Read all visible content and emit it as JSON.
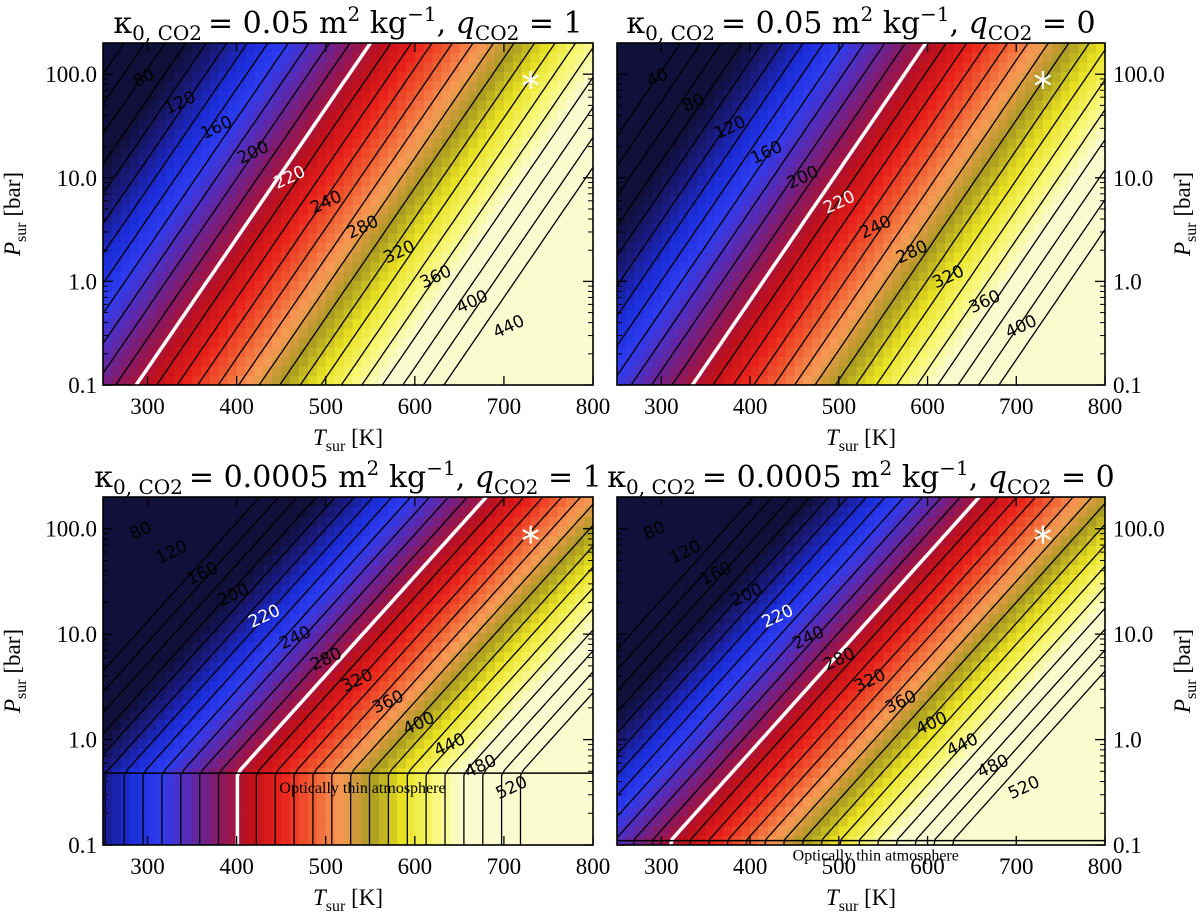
{
  "chart_data": [
    {
      "type": "heatmap",
      "title": {
        "kappa_symbol": "κ",
        "kappa_sub": "0, CO2",
        "kappa_value": "= 0.05 m",
        "unit_sup_m": "2",
        "unit_kg": " kg",
        "unit_sup_kg": "−1",
        "q_sep": ", ",
        "q_symbol": "q",
        "q_sub": "CO2",
        "q_value": " = 1"
      },
      "xlabel": {
        "symbol": "T",
        "sub": "sur",
        "unit": " [K]"
      },
      "ylabel": {
        "symbol": "P",
        "sub": "sur",
        "unit": " [bar]"
      },
      "xlim": [
        250,
        800
      ],
      "ylim": [
        0.1,
        200
      ],
      "yscale": "log",
      "x_ticks": [
        "300",
        "400",
        "500",
        "600",
        "700",
        "800"
      ],
      "y_ticks": [
        "0.1",
        "1.0",
        "10.0",
        "100.0"
      ],
      "y_axis_side": "left",
      "contour_labels": [
        "80",
        "120",
        "160",
        "200",
        "220",
        "240",
        "280",
        "320",
        "360",
        "400",
        "440"
      ],
      "highlight_contour": 220,
      "marker": {
        "T": 730,
        "P": 88
      },
      "thin_limit_bar": null,
      "annotation": ""
    },
    {
      "type": "heatmap",
      "title": {
        "kappa_symbol": "κ",
        "kappa_sub": "0, CO2",
        "kappa_value": "= 0.05 m",
        "unit_sup_m": "2",
        "unit_kg": " kg",
        "unit_sup_kg": "−1",
        "q_sep": ", ",
        "q_symbol": "q",
        "q_sub": "CO2",
        "q_value": " = 0"
      },
      "xlabel": {
        "symbol": "T",
        "sub": "sur",
        "unit": " [K]"
      },
      "ylabel": {
        "symbol": "P",
        "sub": "sur",
        "unit": " [bar]"
      },
      "xlim": [
        250,
        800
      ],
      "ylim": [
        0.1,
        200
      ],
      "yscale": "log",
      "x_ticks": [
        "300",
        "400",
        "500",
        "600",
        "700",
        "800"
      ],
      "y_ticks": [
        "0.1",
        "1.0",
        "10.0",
        "100.0"
      ],
      "y_axis_side": "right",
      "contour_labels": [
        "40",
        "80",
        "120",
        "160",
        "200",
        "220",
        "240",
        "280",
        "320",
        "360",
        "400"
      ],
      "highlight_contour": 220,
      "marker": {
        "T": 730,
        "P": 88
      },
      "thin_limit_bar": null,
      "annotation": ""
    },
    {
      "type": "heatmap",
      "title": {
        "kappa_symbol": "κ",
        "kappa_sub": "0, CO2",
        "kappa_value": "= 0.0005 m",
        "unit_sup_m": "2",
        "unit_kg": " kg",
        "unit_sup_kg": "−1",
        "q_sep": ", ",
        "q_symbol": "q",
        "q_sub": "CO2",
        "q_value": " = 1"
      },
      "xlabel": {
        "symbol": "T",
        "sub": "sur",
        "unit": " [K]"
      },
      "ylabel": {
        "symbol": "P",
        "sub": "sur",
        "unit": " [bar]"
      },
      "xlim": [
        250,
        800
      ],
      "ylim": [
        0.1,
        200
      ],
      "yscale": "log",
      "x_ticks": [
        "300",
        "400",
        "500",
        "600",
        "700",
        "800"
      ],
      "y_ticks": [
        "0.1",
        "1.0",
        "10.0",
        "100.0"
      ],
      "y_axis_side": "left",
      "contour_labels": [
        "80",
        "120",
        "160",
        "200",
        "220",
        "240",
        "280",
        "320",
        "360",
        "400",
        "440",
        "480",
        "520"
      ],
      "highlight_contour": 220,
      "marker": {
        "T": 730,
        "P": 88
      },
      "thin_limit_bar": 0.48,
      "annotation": "Optically thin atmosphere"
    },
    {
      "type": "heatmap",
      "title": {
        "kappa_symbol": "κ",
        "kappa_sub": "0, CO2",
        "kappa_value": "= 0.0005 m",
        "unit_sup_m": "2",
        "unit_kg": " kg",
        "unit_sup_kg": "−1",
        "q_sep": ", ",
        "q_symbol": "q",
        "q_sub": "CO2",
        "q_value": " = 0"
      },
      "xlabel": {
        "symbol": "T",
        "sub": "sur",
        "unit": " [K]"
      },
      "ylabel": {
        "symbol": "P",
        "sub": "sur",
        "unit": " [bar]"
      },
      "xlim": [
        250,
        800
      ],
      "ylim": [
        0.1,
        200
      ],
      "yscale": "log",
      "x_ticks": [
        "300",
        "400",
        "500",
        "600",
        "700",
        "800"
      ],
      "y_ticks": [
        "0.1",
        "1.0",
        "10.0",
        "100.0"
      ],
      "y_axis_side": "right",
      "contour_labels": [
        "80",
        "120",
        "160",
        "200",
        "220",
        "240",
        "280",
        "320",
        "360",
        "400",
        "440",
        "480",
        "520"
      ],
      "highlight_contour": 220,
      "marker": {
        "T": 730,
        "P": 88
      },
      "thin_limit_bar": 0.11,
      "annotation": "Optically thin atmosphere"
    }
  ],
  "colors": {
    "colormap": [
      "#10103a",
      "#1a1a7e",
      "#1b2cd8",
      "#2d3cf0",
      "#5a2ab0",
      "#8a1860",
      "#c0101a",
      "#e8201a",
      "#f05a30",
      "#f79a55",
      "#a89a20",
      "#e8e020",
      "#f7f770",
      "#fbfbd0"
    ],
    "highlight_contour": "#ffffff",
    "contour": "#000000",
    "marker": "#ffffff"
  }
}
